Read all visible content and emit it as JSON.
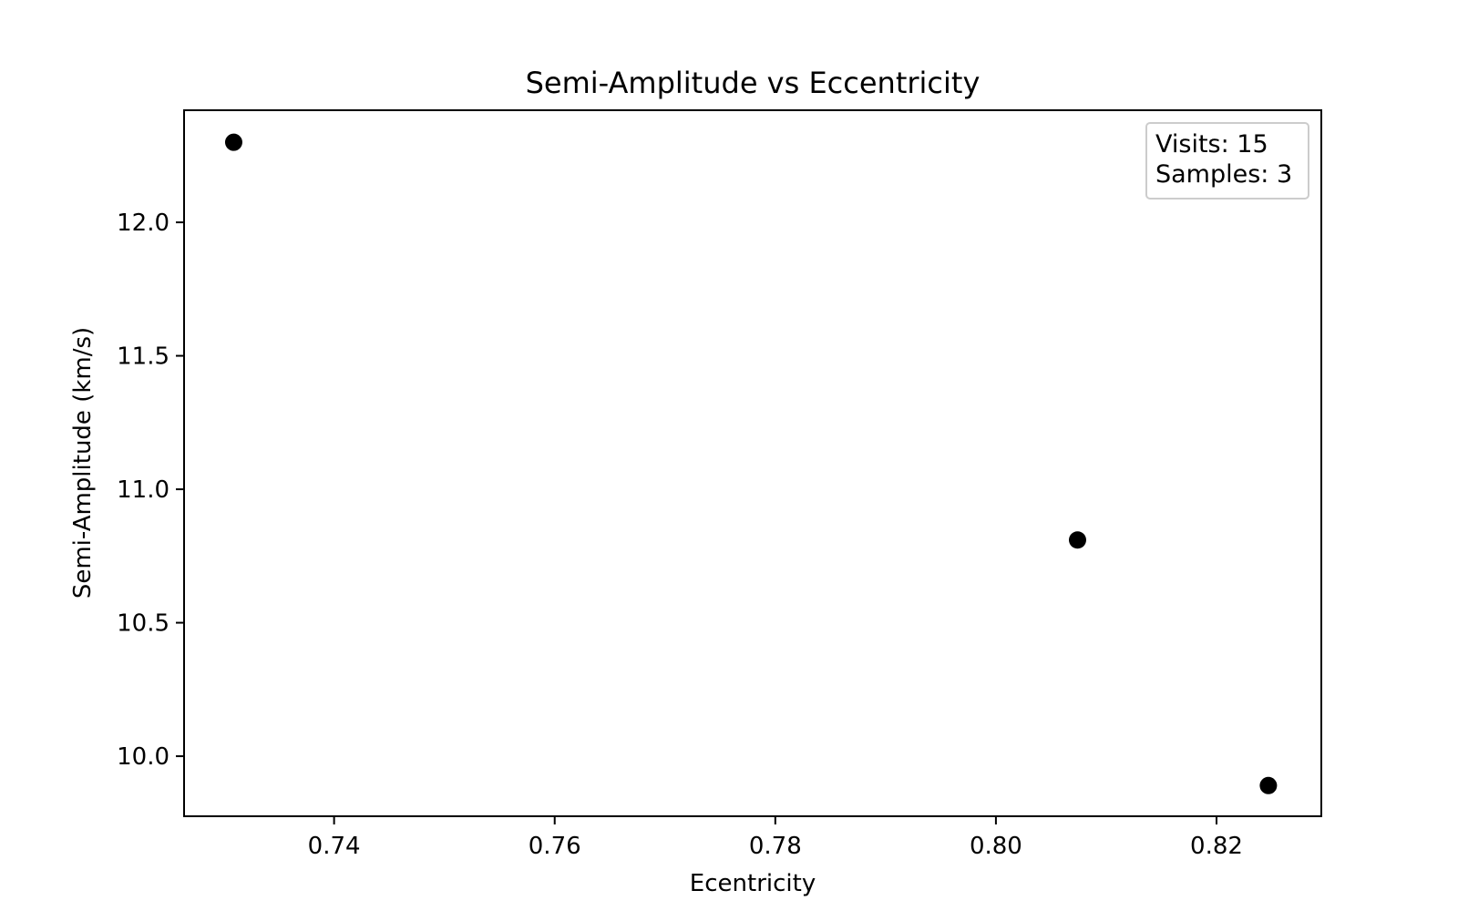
{
  "chart_data": {
    "type": "scatter",
    "title": "Semi-Amplitude vs Eccentricity",
    "xlabel": "Ecentricity",
    "ylabel": "Semi-Amplitude (km/s)",
    "xlim": [
      0.7264,
      0.8295
    ],
    "ylim": [
      9.775,
      12.42
    ],
    "x_ticks": [
      0.74,
      0.76,
      0.78,
      0.8,
      0.82
    ],
    "x_tick_labels": [
      "0.74",
      "0.76",
      "0.78",
      "0.80",
      "0.82"
    ],
    "y_ticks": [
      10.0,
      10.5,
      11.0,
      11.5,
      12.0
    ],
    "y_tick_labels": [
      "10.0",
      "10.5",
      "11.0",
      "11.5",
      "12.0"
    ],
    "grid": false,
    "series": [
      {
        "points": [
          {
            "x": 0.7309,
            "y": 12.3
          },
          {
            "x": 0.8074,
            "y": 10.81
          },
          {
            "x": 0.8247,
            "y": 9.89
          }
        ],
        "color": "#000000",
        "marker": "circle"
      }
    ],
    "annotation": {
      "lines": [
        "Visits: 15",
        "Samples: 3"
      ],
      "placement": "top-right"
    }
  }
}
